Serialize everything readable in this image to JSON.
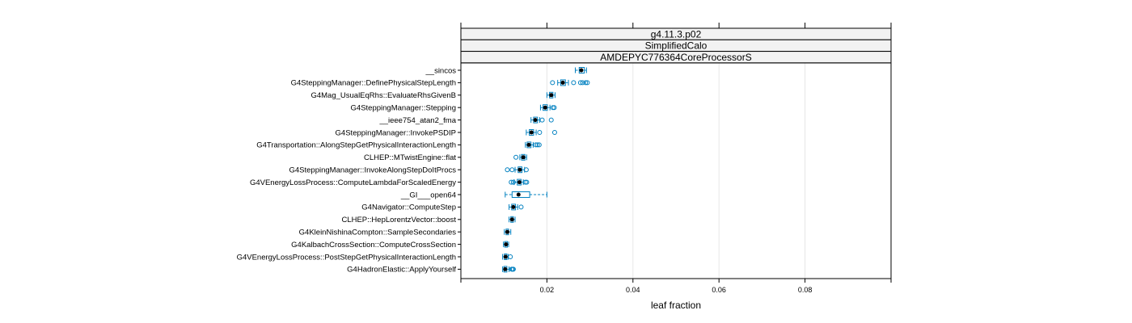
{
  "chart_data": {
    "type": "boxplot",
    "strips": [
      "g4.11.3.p02",
      "SimplifiedCalo",
      "AMDEPYC776364CoreProcessorS"
    ],
    "xlabel": "leaf fraction",
    "xlim": [
      0.0,
      0.1
    ],
    "xticks": [
      0.02,
      0.04,
      0.06,
      0.08
    ],
    "xtick_labels": [
      "0.02",
      "0.04",
      "0.06",
      "0.08"
    ],
    "grid": true,
    "colors": {
      "box": "#0080c0",
      "median": "#000000",
      "grid": "#e6e6e6",
      "strip_bg": "#f2f2f2",
      "frame": "#000000"
    },
    "rows": [
      {
        "label": "__sincos",
        "lw": 0.0266,
        "q1": 0.0275,
        "med": 0.028,
        "q3": 0.0287,
        "uw": 0.0292,
        "outliers": []
      },
      {
        "label": "G4SteppingManager::DefinePhysicalStepLength",
        "lw": 0.0225,
        "q1": 0.0232,
        "med": 0.0237,
        "q3": 0.0243,
        "uw": 0.025,
        "outliers": [
          0.0213,
          0.0262,
          0.0278,
          0.0283,
          0.029,
          0.0294
        ]
      },
      {
        "label": "G4Mag_UsualEqRhs::EvaluateRhsGivenB",
        "lw": 0.02,
        "q1": 0.0206,
        "med": 0.021,
        "q3": 0.0214,
        "uw": 0.0219,
        "outliers": []
      },
      {
        "label": "G4SteppingManager::Stepping",
        "lw": 0.0185,
        "q1": 0.0191,
        "med": 0.0196,
        "q3": 0.0201,
        "uw": 0.0207,
        "outliers": [
          0.0214,
          0.0217
        ]
      },
      {
        "label": "__ieee754_atan2_fma",
        "lw": 0.0163,
        "q1": 0.0169,
        "med": 0.0173,
        "q3": 0.0178,
        "uw": 0.0183,
        "outliers": [
          0.0189,
          0.021
        ]
      },
      {
        "label": "G4SteppingManager::InvokePSDIP",
        "lw": 0.0152,
        "q1": 0.0159,
        "med": 0.0164,
        "q3": 0.0169,
        "uw": 0.0175,
        "outliers": [
          0.0183,
          0.0218
        ]
      },
      {
        "label": "G4Transportation::AlongStepGetPhysicalInteractionLength",
        "lw": 0.015,
        "q1": 0.0154,
        "med": 0.0158,
        "q3": 0.0163,
        "uw": 0.0168,
        "outliers": [
          0.0174,
          0.0178,
          0.0182
        ]
      },
      {
        "label": "CLHEP::MTwistEngine::flat",
        "lw": 0.0137,
        "q1": 0.0141,
        "med": 0.0145,
        "q3": 0.0149,
        "uw": 0.0153,
        "outliers": [
          0.0128
        ]
      },
      {
        "label": "G4SteppingManager::InvokeAlongStepDoItProcs",
        "lw": 0.0126,
        "q1": 0.0133,
        "med": 0.0137,
        "q3": 0.0142,
        "uw": 0.0148,
        "outliers": [
          0.0108,
          0.0119,
          0.0152
        ]
      },
      {
        "label": "G4VEnergyLossProcess::ComputeLambdaForScaledEnergy",
        "lw": 0.0124,
        "q1": 0.0131,
        "med": 0.0136,
        "q3": 0.014,
        "uw": 0.0145,
        "outliers": [
          0.0117,
          0.0122,
          0.015,
          0.0153
        ]
      },
      {
        "label": "__GI___open64",
        "lw": 0.0103,
        "q1": 0.0119,
        "med": 0.0134,
        "q3": 0.016,
        "uw": 0.02,
        "outliers": []
      },
      {
        "label": "G4Navigator::ComputeStep",
        "lw": 0.0112,
        "q1": 0.0118,
        "med": 0.0122,
        "q3": 0.0127,
        "uw": 0.0132,
        "outliers": [
          0.014
        ]
      },
      {
        "label": "CLHEP::HepLorentzVector::boost",
        "lw": 0.0112,
        "q1": 0.0116,
        "med": 0.0119,
        "q3": 0.0122,
        "uw": 0.0126,
        "outliers": []
      },
      {
        "label": "G4KleinNishinaCompton::SampleSecondaries",
        "lw": 0.0101,
        "q1": 0.0105,
        "med": 0.0108,
        "q3": 0.0111,
        "uw": 0.0116,
        "outliers": []
      },
      {
        "label": "G4KalbachCrossSection::ComputeCrossSection",
        "lw": 0.0099,
        "q1": 0.0102,
        "med": 0.0105,
        "q3": 0.0108,
        "uw": 0.0111,
        "outliers": []
      },
      {
        "label": "G4VEnergyLossProcess::PostStepGetPhysicalInteractionLength",
        "lw": 0.0097,
        "q1": 0.0101,
        "med": 0.0104,
        "q3": 0.0107,
        "uw": 0.011,
        "outliers": [
          0.0115
        ]
      },
      {
        "label": "G4HadronElastic::ApplyYourself",
        "lw": 0.0097,
        "q1": 0.01,
        "med": 0.0103,
        "q3": 0.0107,
        "uw": 0.0112,
        "outliers": [
          0.0118,
          0.012,
          0.0122
        ]
      }
    ]
  }
}
